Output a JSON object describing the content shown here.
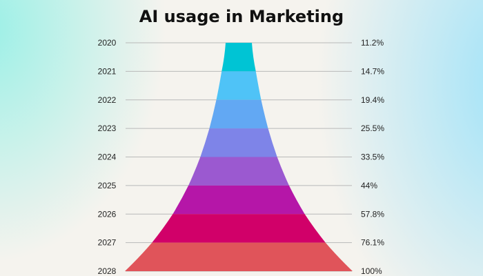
{
  "chart_data": {
    "type": "bar",
    "subtype": "funnel",
    "title": "AI usage in Marketing",
    "categories": [
      "2020",
      "2021",
      "2022",
      "2023",
      "2024",
      "2025",
      "2026",
      "2027",
      "2028"
    ],
    "values": [
      11.2,
      14.7,
      19.4,
      25.5,
      33.5,
      44,
      57.8,
      76.1,
      100
    ],
    "value_labels": [
      "11.2%",
      "14.7%",
      "19.4%",
      "25.5%",
      "33.5%",
      "44%",
      "57.8%",
      "76.1%",
      "100%"
    ],
    "unit": "%",
    "grid": true,
    "colors": [
      "#00c4d4",
      "#4fc3f7",
      "#62a8f3",
      "#7e84e8",
      "#9b59d0",
      "#b516a8",
      "#d10069",
      "#e0545a"
    ]
  }
}
